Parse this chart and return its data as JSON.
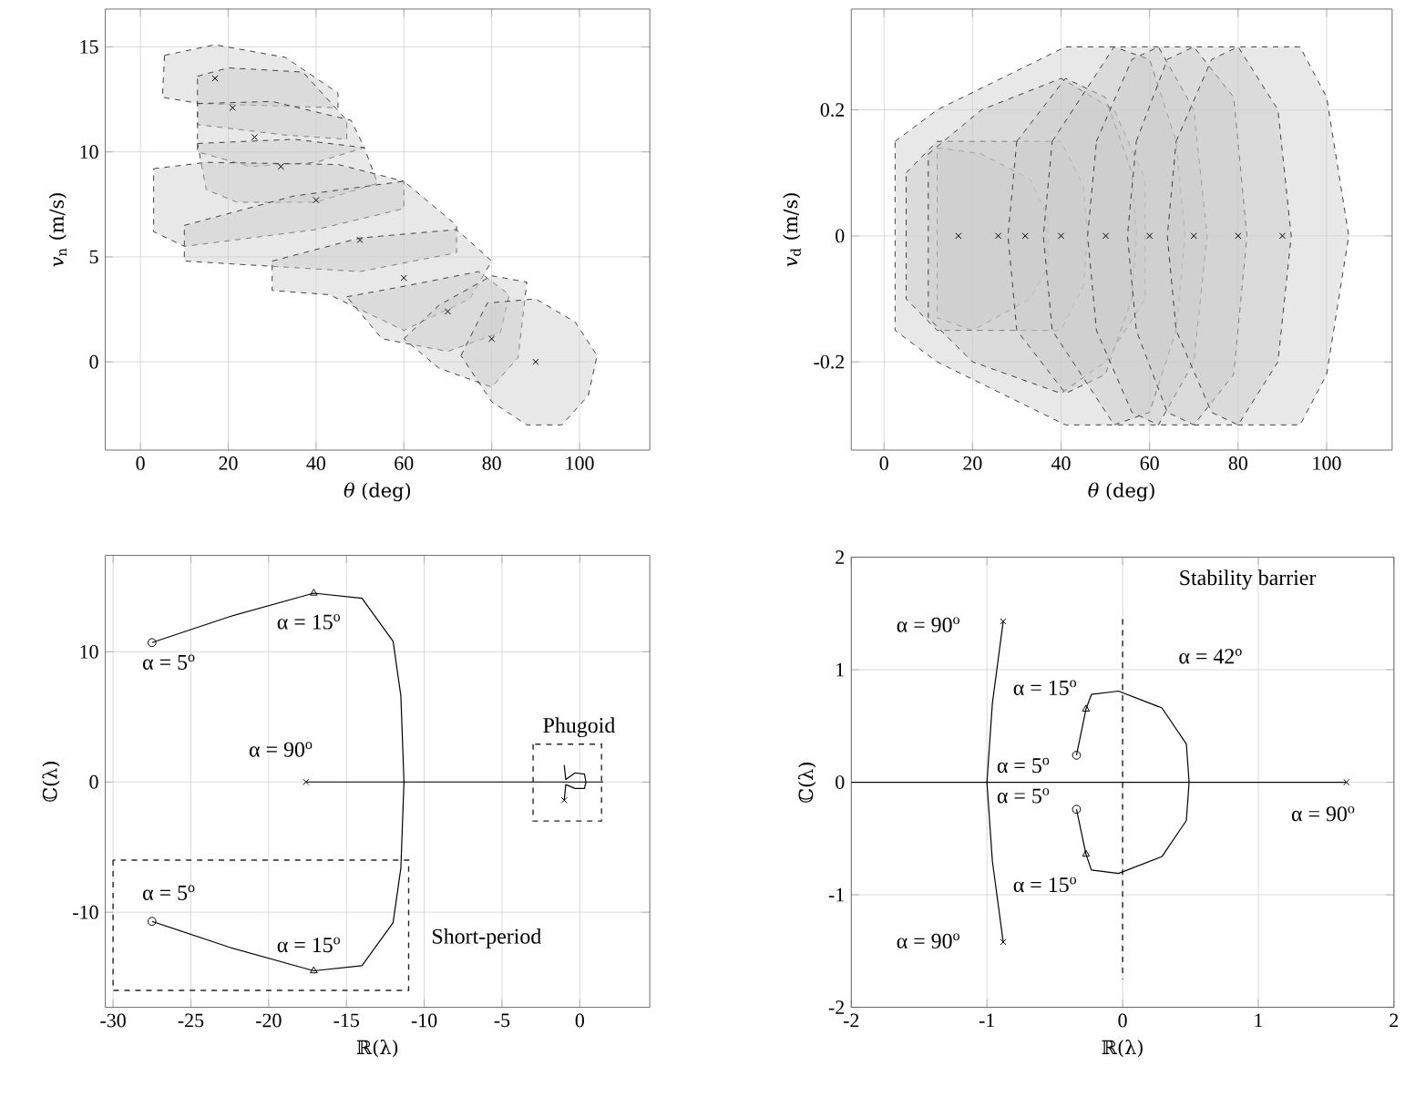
{
  "chart_data": [
    {
      "type": "area",
      "xlabel": "*θ* (deg)",
      "ylabel": "*v*$_{n}$ (m/s)",
      "xlim": [
        -8,
        116
      ],
      "ylim": [
        -4.2,
        16.8
      ],
      "xticks": [
        0,
        20,
        40,
        60,
        80,
        100
      ],
      "yticks": [
        0,
        5,
        10,
        15
      ],
      "grid": true,
      "line_style": "dashed",
      "series": [
        {
          "color": "#cccccc",
          "x": [
            5.5,
            17,
            33,
            45,
            45,
            13.5,
            5
          ],
          "values": [
            14.6,
            15.1,
            14.5,
            12.8,
            12.1,
            12.3,
            12.6
          ]
        },
        {
          "color": "#cccccc",
          "x": [
            13,
            20,
            37,
            47,
            47,
            33,
            13
          ],
          "values": [
            13.6,
            14,
            13.8,
            11.5,
            10.6,
            10.8,
            11.3
          ]
        },
        {
          "color": "#cccccc",
          "x": [
            13,
            30,
            48,
            51,
            40,
            25,
            13
          ],
          "values": [
            12.3,
            12.4,
            11.5,
            10.2,
            9.5,
            9.3,
            10
          ]
        },
        {
          "color": "#cccccc",
          "x": [
            13,
            35,
            51,
            54,
            40,
            22,
            15
          ],
          "values": [
            10.4,
            10.6,
            10.2,
            8.5,
            7.6,
            7.6,
            8.2
          ]
        },
        {
          "color": "#cccccc",
          "x": [
            3,
            15,
            45,
            60,
            60,
            40,
            10,
            3
          ],
          "values": [
            9.2,
            9.5,
            9.4,
            8.6,
            7.3,
            6.3,
            5.5,
            6.2
          ]
        },
        {
          "color": "#cccccc",
          "x": [
            10,
            35,
            60,
            72,
            72,
            50,
            10
          ],
          "values": [
            6.5,
            7.9,
            8.6,
            6.5,
            5.2,
            4.3,
            4.8
          ]
        },
        {
          "color": "#cccccc",
          "x": [
            30,
            50,
            72,
            80,
            75,
            60,
            43,
            30
          ],
          "values": [
            4.8,
            5.9,
            6.3,
            4.8,
            3,
            1.5,
            3.2,
            3.4
          ]
        },
        {
          "color": "#cccccc",
          "x": [
            47,
            60,
            77,
            84,
            82,
            70,
            55
          ],
          "values": [
            3.1,
            3.6,
            4.3,
            3.2,
            1.4,
            0.5,
            1.1
          ]
        },
        {
          "color": "#cccccc",
          "x": [
            60,
            68,
            80,
            88,
            86,
            80,
            68
          ],
          "values": [
            1.1,
            2.7,
            4.1,
            3.8,
            0.2,
            -1.2,
            -0.3
          ]
        },
        {
          "color": "#cccccc",
          "x": [
            73,
            79,
            90,
            99,
            104,
            102,
            96,
            88,
            80
          ],
          "values": [
            0.3,
            2.8,
            3.0,
            1.9,
            0.3,
            -1.6,
            -3,
            -3,
            -1.9
          ]
        },
        {
          "type": "scatter",
          "marker": "cross",
          "color": "#000000",
          "x": [
            17,
            21,
            26,
            32,
            40,
            50,
            60,
            70,
            80,
            90
          ],
          "values": [
            13.5,
            12.1,
            10.7,
            9.3,
            7.7,
            5.8,
            4.0,
            2.4,
            1.1,
            0
          ]
        }
      ]
    },
    {
      "type": "area",
      "xlabel": "*θ* (deg)",
      "ylabel": "*v*$_{d}$ (m/s)",
      "xlim": [
        -7.4,
        114.8
      ],
      "ylim": [
        -0.34,
        0.36
      ],
      "xticks": [
        0,
        20,
        40,
        60,
        80,
        100
      ],
      "yticks": [
        -0.2,
        0,
        0.2
      ],
      "grid": true,
      "line_style": "dashed",
      "series": [
        {
          "color": "#cccccc",
          "x": [
            2.5,
            12,
            41,
            94,
            100,
            105,
            100,
            94,
            41,
            12,
            2.5
          ],
          "values": [
            0.15,
            0.2,
            0.3,
            0.3,
            0.22,
            0,
            -0.22,
            -0.3,
            -0.3,
            -0.2,
            -0.15
          ]
        },
        {
          "color": "#cccccc",
          "x": [
            12,
            22,
            33,
            37,
            37,
            33,
            20,
            12
          ],
          "values": [
            0.14,
            0.13,
            0.09,
            0.03,
            -0.05,
            -0.1,
            -0.15,
            -0.13
          ]
        },
        {
          "color": "#cccccc",
          "x": [
            5,
            12,
            40,
            45,
            46,
            45,
            40,
            12,
            5
          ],
          "values": [
            0.1,
            0.15,
            0.15,
            0.08,
            0,
            -0.08,
            -0.15,
            -0.15,
            -0.1
          ]
        },
        {
          "color": "#cccccc",
          "x": [
            10,
            22,
            40,
            52,
            59,
            59,
            50,
            40,
            20,
            10
          ],
          "values": [
            0.13,
            0.2,
            0.25,
            0.2,
            0.09,
            -0.1,
            -0.2,
            -0.25,
            -0.2,
            -0.13
          ]
        },
        {
          "color": "#cccccc",
          "x": [
            30,
            41,
            50,
            56,
            57,
            56,
            50,
            41,
            30,
            28
          ],
          "values": [
            0.15,
            0.25,
            0.22,
            0.1,
            0,
            -0.1,
            -0.22,
            -0.25,
            -0.15,
            0
          ]
        },
        {
          "color": "#cccccc",
          "x": [
            38,
            52,
            60,
            66,
            68,
            66,
            60,
            52,
            38,
            36
          ],
          "values": [
            0.15,
            0.3,
            0.28,
            0.15,
            0,
            -0.15,
            -0.28,
            -0.3,
            -0.15,
            0
          ]
        },
        {
          "color": "#cccccc",
          "x": [
            48,
            56,
            62,
            70,
            73,
            70,
            62,
            56,
            48,
            46
          ],
          "values": [
            0.15,
            0.28,
            0.3,
            0.2,
            0,
            -0.2,
            -0.3,
            -0.28,
            -0.15,
            0
          ]
        },
        {
          "color": "#cccccc",
          "x": [
            57,
            64,
            70,
            79,
            82,
            79,
            70,
            64,
            57,
            55
          ],
          "values": [
            0.15,
            0.28,
            0.3,
            0.22,
            0,
            -0.22,
            -0.3,
            -0.28,
            -0.15,
            0
          ]
        },
        {
          "color": "#cccccc",
          "x": [
            66,
            74,
            80,
            89,
            92,
            89,
            80,
            74,
            66,
            64
          ],
          "values": [
            0.15,
            0.28,
            0.3,
            0.2,
            0,
            -0.2,
            -0.3,
            -0.28,
            -0.15,
            0
          ]
        },
        {
          "type": "scatter",
          "marker": "cross",
          "color": "#000000",
          "x": [
            16.8,
            25.8,
            31.9,
            40,
            50.1,
            60,
            70,
            80,
            90
          ],
          "values": [
            0,
            0,
            0,
            0,
            0,
            0,
            0,
            0,
            0
          ]
        }
      ]
    },
    {
      "type": "line",
      "xlabel": "ℝ(λ)",
      "ylabel": "ℂ(λ)",
      "xlim": [
        -30.5,
        4.5
      ],
      "ylim": [
        -17.3,
        17.4
      ],
      "xticks": [
        -30,
        -25,
        -20,
        -15,
        -10,
        -5,
        0
      ],
      "yticks": [
        -10,
        0,
        10
      ],
      "grid": true,
      "annotations": [
        "α = 15$^{o}$",
        "α = 5$^{o}$",
        "α = 90$^{o}$",
        "Phugoid",
        "α = 5$^{o}$",
        "α = 15$^{o}$",
        "Short-period"
      ],
      "series": [
        {
          "color": "#000000",
          "x": [
            -27.5,
            -22.5,
            -17.1,
            -14,
            -12,
            -11.5,
            -11.3,
            -11.5,
            -12,
            -14,
            -17.1,
            -22.5,
            -27.5
          ],
          "values": [
            10.7,
            12.7,
            14.5,
            14.1,
            10.8,
            6.6,
            0,
            -6.6,
            -10.8,
            -14.1,
            -14.5,
            -12.7,
            -10.7
          ]
        },
        {
          "color": "#000000",
          "x": [
            -17.6,
            1.5
          ],
          "values": [
            0,
            0
          ]
        },
        {
          "color": "#000000",
          "x": [
            -1,
            -0.9,
            -0.3,
            0.3,
            0.4,
            0.3,
            -0.3,
            -0.9,
            -1
          ],
          "values": [
            1.3,
            0.2,
            0.7,
            0.6,
            0,
            -0.5,
            -0.5,
            -0.2,
            -1.4
          ]
        },
        {
          "type": "scatter",
          "marker": "circle",
          "color": "#000000",
          "x": [
            -27.5,
            -27.5
          ],
          "values": [
            10.7,
            -10.7
          ]
        },
        {
          "type": "scatter",
          "marker": "triangle",
          "color": "#000000",
          "x": [
            -17.1,
            -17.1
          ],
          "values": [
            14.5,
            -14.5
          ]
        },
        {
          "type": "scatter",
          "marker": "cross",
          "color": "#000000",
          "x": [
            -17.6,
            -1
          ],
          "values": [
            0,
            -1.4
          ]
        }
      ]
    },
    {
      "type": "line",
      "xlabel": "ℝ(λ)",
      "ylabel": "ℂ(λ)",
      "xlim": [
        -2,
        2
      ],
      "ylim": [
        -2,
        2
      ],
      "xticks": [
        -2,
        -1,
        0,
        1,
        2
      ],
      "yticks": [
        -2,
        -1,
        0,
        1,
        2
      ],
      "grid": true,
      "annotations": [
        "α = 90$^{o}$",
        "Stability barrier",
        "α = 42$^{o}$",
        "α = 15$^{o}$",
        "α = 5$^{o}$",
        "α = 5$^{o}$",
        "α = 90$^{o}$",
        "α = 15$^{o}$",
        "α = 90$^{o}$"
      ],
      "series": [
        {
          "color": "#000000",
          "x": [
            -0.88,
            -0.96,
            -1.0,
            -0.96,
            -0.88
          ],
          "values": [
            1.43,
            0.7,
            0,
            -0.7,
            -1.42
          ]
        },
        {
          "color": "#000000",
          "x": [
            -2,
            1.65
          ],
          "values": [
            0,
            0
          ]
        },
        {
          "color": "#000000",
          "x": [
            -0.34,
            -0.27,
            -0.23,
            -0.03,
            0.29,
            0.47,
            0.49,
            0.47,
            0.29,
            -0.03,
            -0.23,
            -0.27,
            -0.34
          ],
          "values": [
            0.24,
            0.65,
            0.78,
            0.81,
            0.66,
            0.34,
            0,
            -0.34,
            -0.66,
            -0.81,
            -0.78,
            -0.64,
            -0.24
          ]
        },
        {
          "color": "#000000",
          "line_style": "dashed",
          "x": [
            0,
            0
          ],
          "values": [
            1.45,
            -1.75
          ]
        },
        {
          "type": "scatter",
          "marker": "circle",
          "color": "#000000",
          "x": [
            -0.34,
            -0.34
          ],
          "values": [
            0.24,
            -0.24
          ]
        },
        {
          "type": "scatter",
          "marker": "triangle",
          "color": "#000000",
          "x": [
            -0.27,
            -0.27
          ],
          "values": [
            0.65,
            -0.64
          ]
        },
        {
          "type": "scatter",
          "marker": "cross",
          "color": "#000000",
          "x": [
            -0.88,
            -0.88,
            1.65
          ],
          "values": [
            1.43,
            -1.42,
            0
          ]
        }
      ]
    }
  ]
}
